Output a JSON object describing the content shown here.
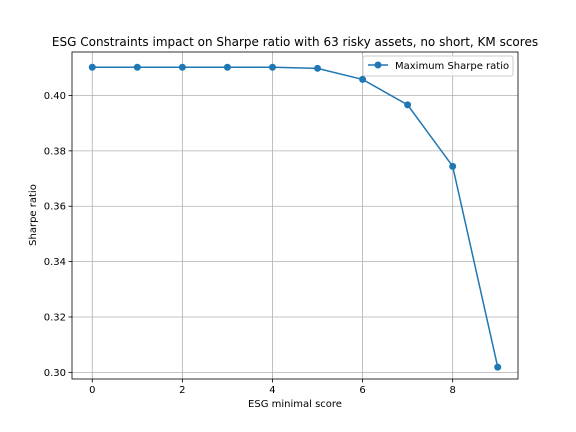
{
  "chart_data": {
    "type": "line",
    "title": "ESG Constraints impact on Sharpe ratio with 63 risky assets, no short, KM scores",
    "xlabel": "ESG minimal score",
    "ylabel": "Sharpe ratio",
    "x": [
      0,
      1,
      2,
      3,
      4,
      5,
      6,
      7,
      8,
      9
    ],
    "series": [
      {
        "name": "Maximum Sharpe ratio",
        "values": [
          0.4102,
          0.4102,
          0.4102,
          0.4102,
          0.4102,
          0.4098,
          0.4058,
          0.3966,
          0.3744,
          0.3019
        ],
        "color": "#1f77b4",
        "marker": "circle"
      }
    ],
    "xlim": [
      -0.45,
      9.45
    ],
    "ylim": [
      0.2976,
      0.4157
    ],
    "xticks": [
      0,
      2,
      4,
      6,
      8
    ],
    "yticks": [
      0.3,
      0.32,
      0.34,
      0.36,
      0.38,
      0.4
    ],
    "xtick_labels": [
      "0",
      "2",
      "4",
      "6",
      "8"
    ],
    "ytick_labels": [
      "0.30",
      "0.32",
      "0.34",
      "0.36",
      "0.38",
      "0.40"
    ],
    "grid": true,
    "legend_position": "top-right"
  }
}
